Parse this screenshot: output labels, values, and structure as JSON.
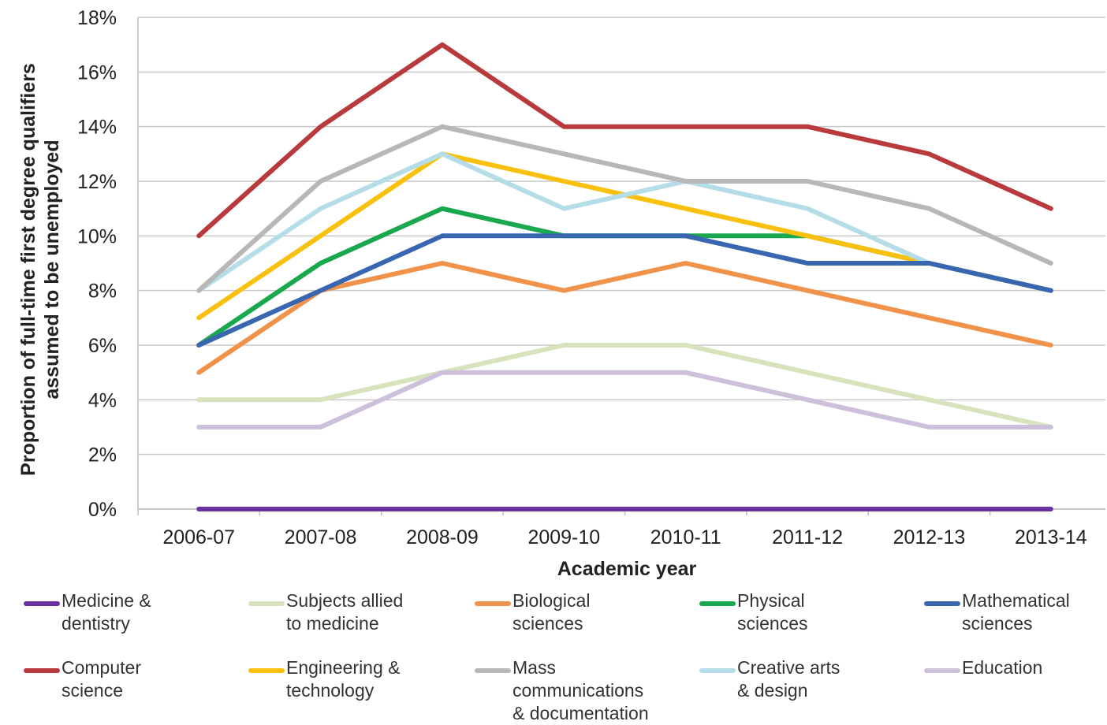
{
  "chart_data": {
    "type": "line",
    "xlabel": "Academic year",
    "ylabel": "Proportion of full-time first degree qualifiers\nassumed to be unemployed",
    "categories": [
      "2006-07",
      "2007-08",
      "2008-09",
      "2009-10",
      "2010-11",
      "2011-12",
      "2012-13",
      "2013-14"
    ],
    "ylim": [
      0,
      18
    ],
    "yticks": [
      "0%",
      "2%",
      "4%",
      "6%",
      "8%",
      "10%",
      "12%",
      "14%",
      "16%",
      "18%"
    ],
    "grid": true,
    "legend_position": "bottom",
    "series": [
      {
        "name": "Medicine & dentistry",
        "label": "Medicine &\ndentistry",
        "color": "#6a2fa0",
        "values": [
          0,
          0,
          0,
          0,
          0,
          0,
          0,
          0
        ]
      },
      {
        "name": "Subjects allied to medicine",
        "label": "Subjects allied\nto medicine",
        "color": "#d6e3bc",
        "values": [
          4,
          4,
          5,
          6,
          6,
          5,
          4,
          3
        ]
      },
      {
        "name": "Biological sciences",
        "label": "Biological\nsciences",
        "color": "#f0924a",
        "values": [
          5,
          8,
          9,
          8,
          9,
          8,
          7,
          6
        ]
      },
      {
        "name": "Physical sciences",
        "label": "Physical\nsciences",
        "color": "#1aa84e",
        "values": [
          6,
          9,
          11,
          10,
          10,
          10,
          9,
          8
        ]
      },
      {
        "name": "Mathematical sciences",
        "label": "Mathematical\nsciences",
        "color": "#3866b0",
        "values": [
          6,
          8,
          10,
          10,
          10,
          9,
          9,
          8
        ]
      },
      {
        "name": "Computer science",
        "label": "Computer\nscience",
        "color": "#b83a3c",
        "values": [
          10,
          14,
          17,
          14,
          14,
          14,
          13,
          11
        ]
      },
      {
        "name": "Engineering & technology",
        "label": "Engineering &\ntechnology",
        "color": "#f9c10e",
        "values": [
          7,
          10,
          13,
          12,
          11,
          10,
          9,
          8
        ]
      },
      {
        "name": "Mass communications & documentation",
        "label": "Mass\ncommunications\n& documentation",
        "color": "#b7b7b7",
        "values": [
          8,
          12,
          14,
          13,
          12,
          12,
          11,
          9
        ]
      },
      {
        "name": "Creative arts & design",
        "label": "Creative arts\n& design",
        "color": "#b5dde8",
        "values": [
          8,
          11,
          13,
          11,
          12,
          11,
          9,
          8
        ]
      },
      {
        "name": "Education",
        "label": "Education",
        "color": "#ccc0da",
        "values": [
          3,
          3,
          5,
          5,
          5,
          4,
          3,
          3
        ]
      }
    ],
    "draw_order": [
      1,
      9,
      2,
      3,
      6,
      8,
      4,
      7,
      5,
      0
    ]
  }
}
